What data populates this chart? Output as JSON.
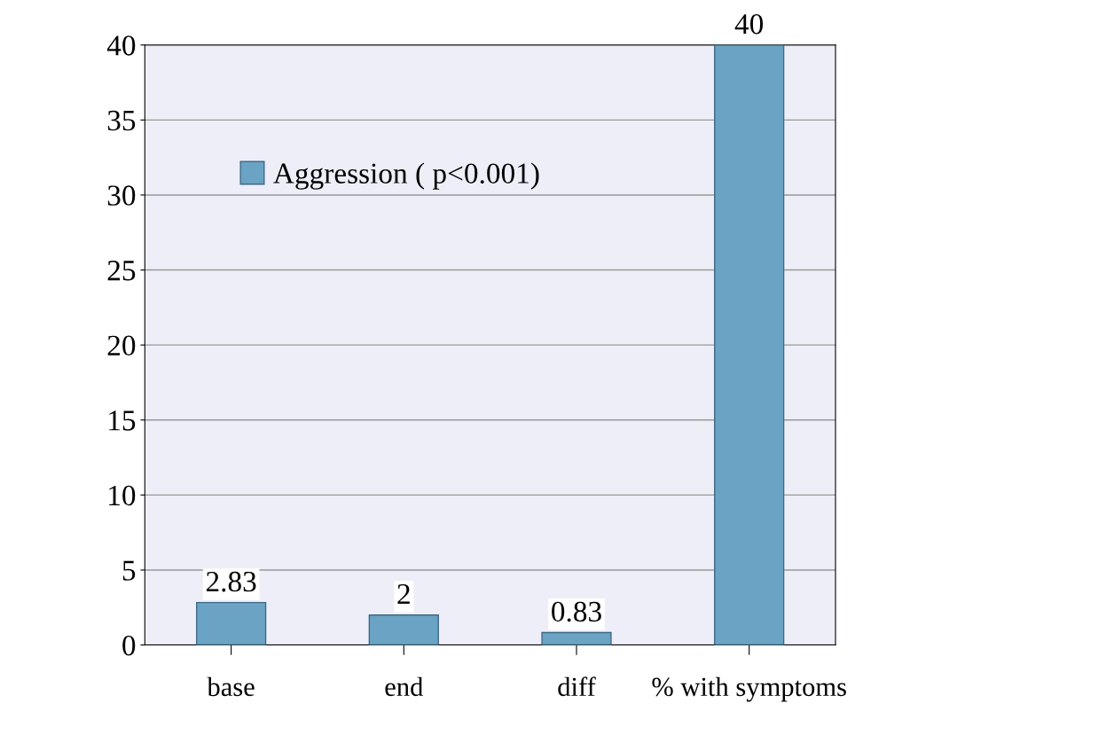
{
  "chart_data": {
    "type": "bar",
    "categories": [
      "base",
      "end",
      "diff",
      "% with symptoms"
    ],
    "series": [
      {
        "name": "Aggression ( p<0.001)",
        "color": "#6aa3c4",
        "values": [
          2.83,
          2,
          0.83,
          40
        ]
      }
    ],
    "ylim": [
      0,
      40
    ],
    "yticks": [
      0,
      5,
      10,
      15,
      20,
      25,
      30,
      35,
      40
    ],
    "grid": "y",
    "legend": "top left",
    "data_labels": true
  }
}
